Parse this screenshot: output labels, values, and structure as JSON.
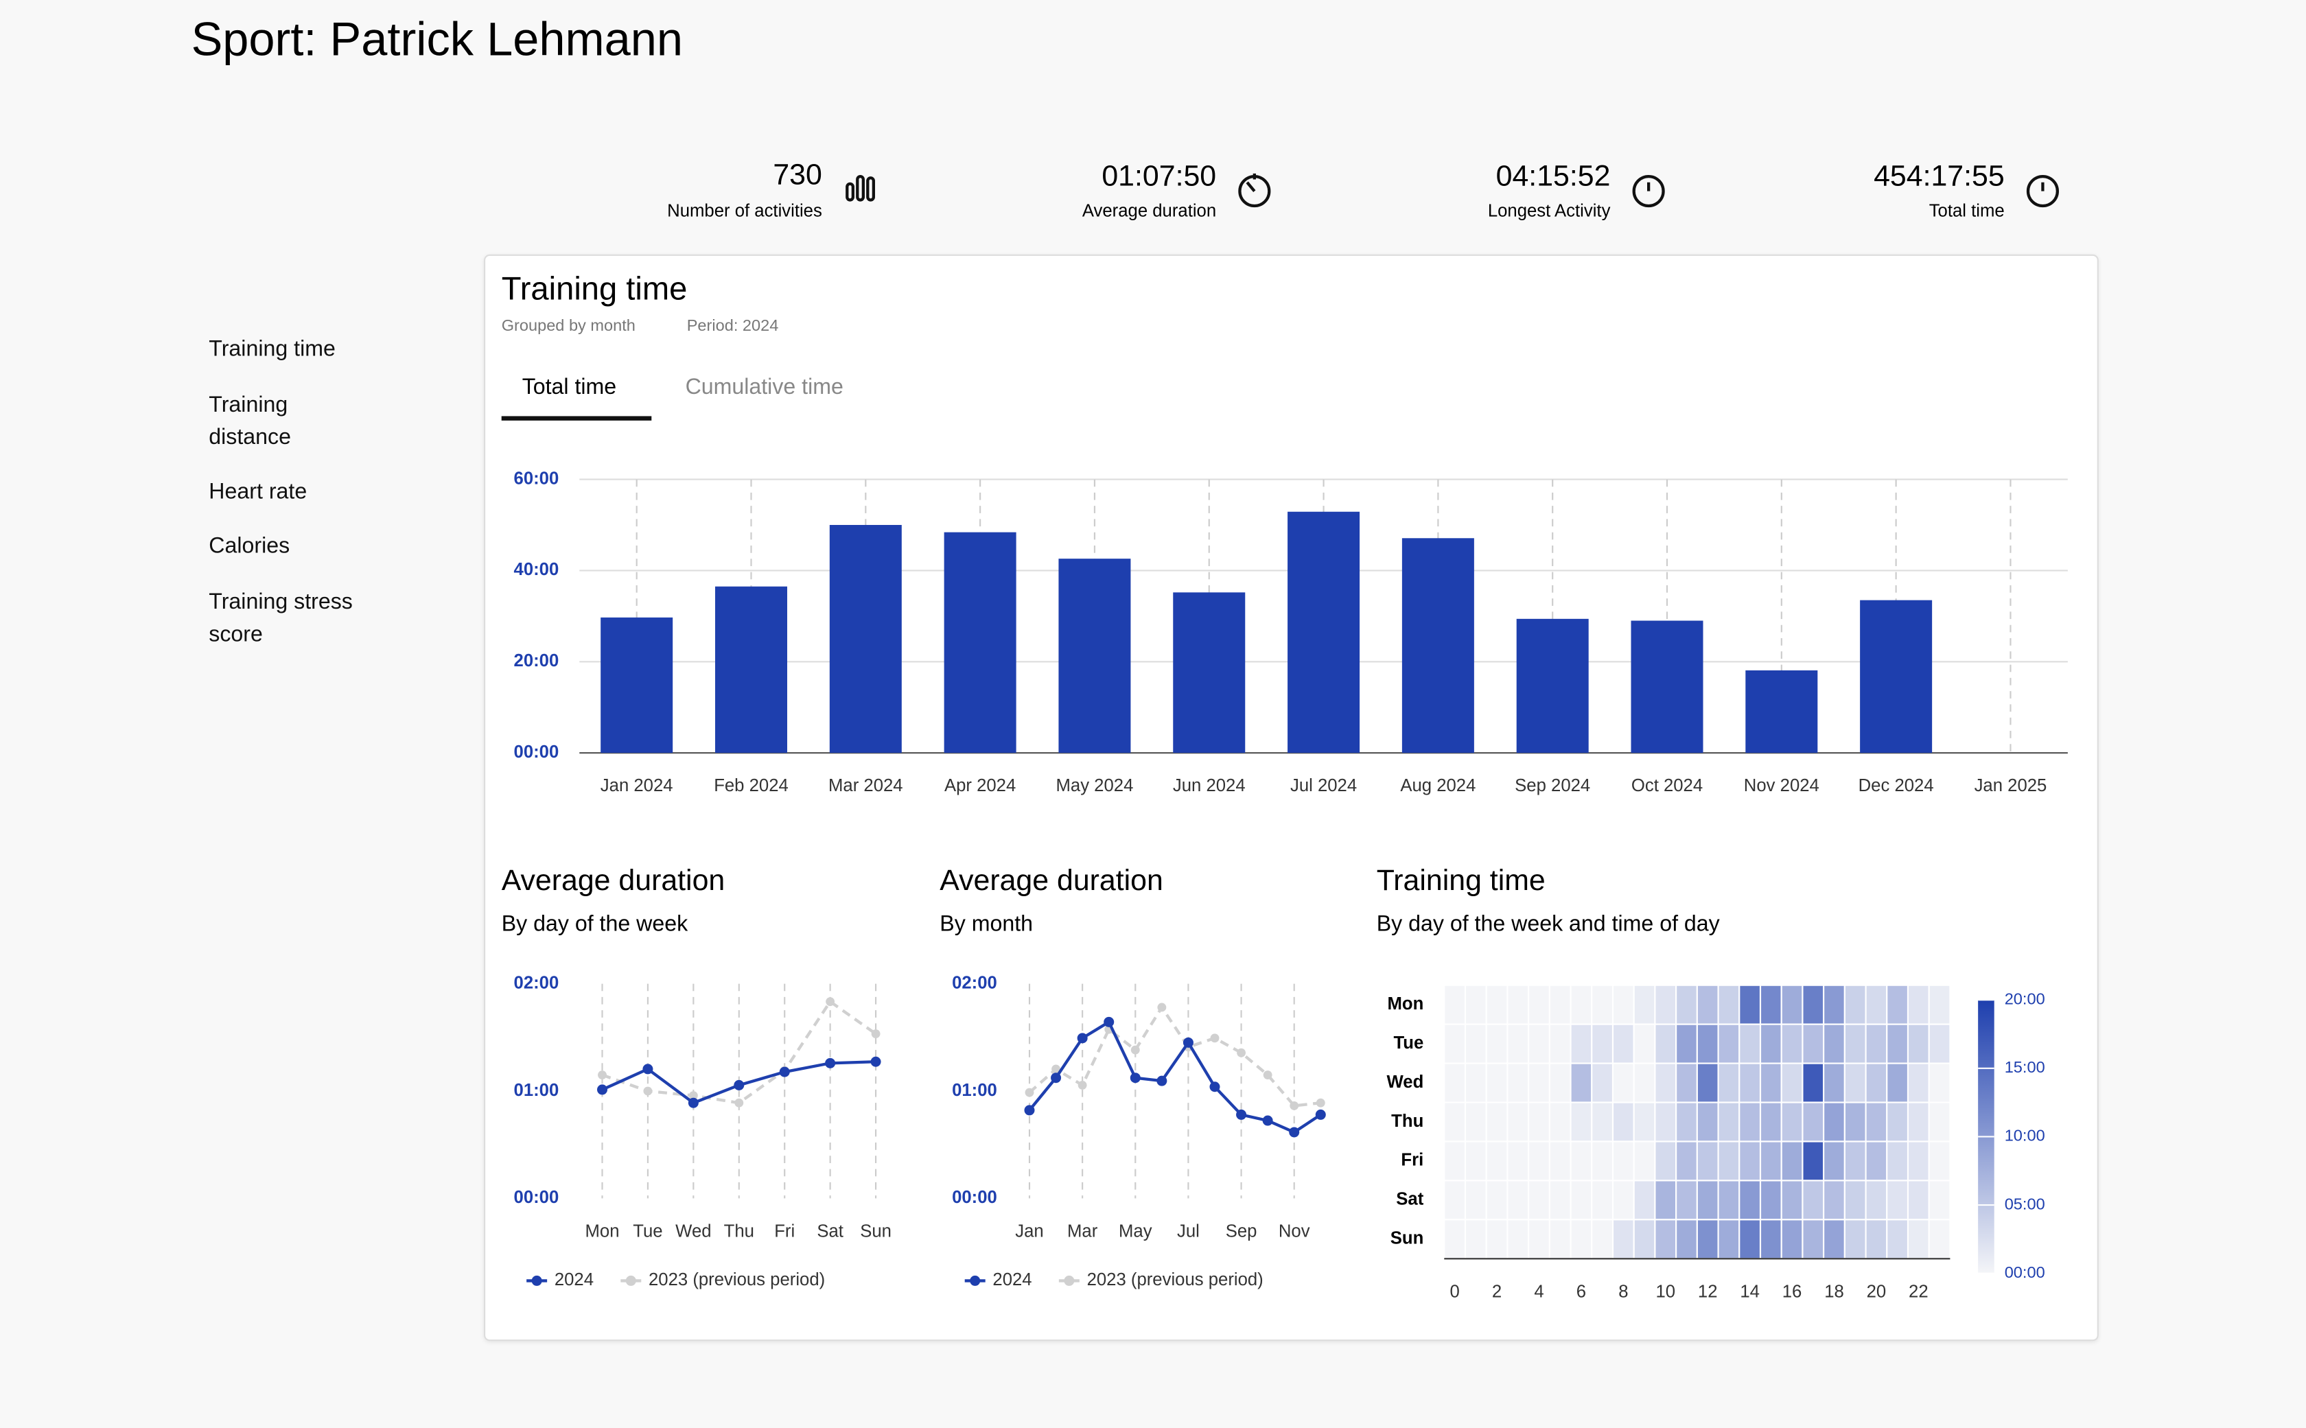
{
  "header": {
    "title": "Sport: Patrick Lehmann"
  },
  "stats": [
    {
      "value": "730",
      "label": "Number of activities"
    },
    {
      "value": "01:07:50",
      "label": "Average duration"
    },
    {
      "value": "04:15:52",
      "label": "Longest Activity"
    },
    {
      "value": "454:17:55",
      "label": "Total time"
    }
  ],
  "nav": [
    "Training time",
    "Training distance",
    "Heart rate",
    "Calories",
    "Training stress score"
  ],
  "panel": {
    "title": "Training time",
    "grouping": "Grouped by month",
    "period": "Period: 2024",
    "tabs": [
      "Total time",
      "Cumulative time"
    ]
  },
  "chart_data": [
    {
      "type": "bar",
      "categories": [
        "Jan 2024",
        "Feb 2024",
        "Mar 2024",
        "Apr 2024",
        "May 2024",
        "Jun 2024",
        "Jul 2024",
        "Aug 2024",
        "Sep 2024",
        "Oct 2024",
        "Nov 2024",
        "Dec 2024",
        "Jan 2025"
      ],
      "values": [
        29.7,
        36.5,
        50,
        48.4,
        42.6,
        35.2,
        52.9,
        47.1,
        29.4,
        29,
        18.1,
        33.5,
        null
      ],
      "color": "#1e3fae",
      "ylim": [
        0,
        60
      ],
      "yticks": [
        {
          "value": 0,
          "label": "00:00"
        },
        {
          "value": 20,
          "label": "20:00"
        },
        {
          "value": 40,
          "label": "40:00"
        },
        {
          "value": 60,
          "label": "60:00"
        }
      ],
      "grid": true
    },
    {
      "type": "line",
      "title": "Average duration",
      "subtitle": "By day of the week",
      "categories": [
        "Mon",
        "Tue",
        "Wed",
        "Thu",
        "Fri",
        "Sat",
        "Sun"
      ],
      "series": [
        {
          "name": "2024",
          "color": "#1e3fae",
          "values": [
            60.8,
            72.3,
            53.4,
            63.3,
            70.7,
            75.6,
            76.4
          ]
        },
        {
          "name": "2023 (previous period)",
          "color": "#d0d0d0",
          "dashed": true,
          "values": [
            69,
            60,
            57.5,
            53.4,
            71.5,
            110,
            92
          ]
        }
      ],
      "ylim": [
        0,
        120
      ],
      "yticks": [
        {
          "value": 0,
          "label": "00:00"
        },
        {
          "value": 60,
          "label": "01:00"
        },
        {
          "value": 120,
          "label": "02:00"
        }
      ]
    },
    {
      "type": "line",
      "title": "Average duration",
      "subtitle": "By month",
      "categories": [
        "Jan",
        null,
        "Mar",
        null,
        "May",
        null,
        "Jul",
        null,
        "Sep",
        null,
        "Nov",
        null
      ],
      "series": [
        {
          "name": "2024",
          "color": "#1e3fae",
          "values": [
            49.3,
            67.4,
            89.6,
            98.6,
            67.4,
            65.7,
            87.1,
            62.4,
            46.8,
            43.5,
            37,
            46.8
          ]
        },
        {
          "name": "2023 (previous period)",
          "color": "#d0d0d0",
          "dashed": true,
          "values": [
            59.2,
            72.3,
            63.3,
            94.5,
            83,
            106.8,
            84.6,
            89.6,
            81.4,
            69,
            51.8,
            53.4
          ]
        }
      ],
      "ylim": [
        0,
        120
      ],
      "yticks": [
        {
          "value": 0,
          "label": "00:00"
        },
        {
          "value": 60,
          "label": "01:00"
        },
        {
          "value": 120,
          "label": "02:00"
        }
      ]
    },
    {
      "type": "heatmap",
      "title": "Training time",
      "subtitle": "By day of the week and time of day",
      "rows": [
        "Mon",
        "Tue",
        "Wed",
        "Thu",
        "Fri",
        "Sat",
        "Sun"
      ],
      "x": [
        0,
        1,
        2,
        3,
        4,
        5,
        6,
        7,
        8,
        9,
        10,
        11,
        12,
        13,
        14,
        15,
        16,
        17,
        18,
        19,
        20,
        21,
        22,
        23
      ],
      "xticks": [
        0,
        2,
        4,
        6,
        8,
        10,
        12,
        14,
        16,
        18,
        20,
        22
      ],
      "values": [
        [
          0,
          0,
          0,
          0,
          0,
          0,
          0,
          0,
          0,
          1,
          2,
          4,
          6,
          4,
          14,
          12,
          8,
          13,
          10,
          4,
          3,
          6,
          2,
          1
        ],
        [
          0,
          0,
          0,
          0,
          0,
          0,
          2,
          2,
          2,
          0,
          3,
          9,
          10,
          6,
          4,
          8,
          5,
          6,
          8,
          4,
          5,
          7,
          4,
          2
        ],
        [
          0,
          0,
          0,
          0,
          0,
          0,
          6,
          2,
          0,
          0,
          2,
          6,
          13,
          4,
          5,
          7,
          3,
          17,
          8,
          3,
          5,
          8,
          2,
          0
        ],
        [
          0,
          0,
          0,
          0,
          0,
          0,
          1,
          1,
          2,
          1,
          2,
          5,
          7,
          4,
          6,
          7,
          5,
          6,
          9,
          7,
          6,
          4,
          2,
          0
        ],
        [
          0,
          0,
          0,
          0,
          0,
          0,
          0,
          0,
          0,
          0,
          3,
          6,
          5,
          4,
          6,
          7,
          8,
          17,
          8,
          5,
          6,
          3,
          2,
          0
        ],
        [
          0,
          0,
          0,
          0,
          0,
          0,
          0,
          0,
          0,
          2,
          7,
          6,
          8,
          7,
          10,
          9,
          7,
          5,
          6,
          4,
          3,
          2,
          2,
          0
        ],
        [
          0,
          0,
          0,
          0,
          0,
          0,
          0,
          0,
          2,
          3,
          6,
          8,
          11,
          8,
          13,
          11,
          9,
          7,
          9,
          4,
          4,
          3,
          1,
          0
        ]
      ],
      "color_range": [
        "#f4f5f8",
        "#1e3fae"
      ],
      "zlim": [
        0,
        20
      ],
      "zticks": [
        {
          "value": 0,
          "label": "00:00"
        },
        {
          "value": 5,
          "label": "05:00"
        },
        {
          "value": 10,
          "label": "10:00"
        },
        {
          "value": 15,
          "label": "15:00"
        },
        {
          "value": 20,
          "label": "20:00"
        }
      ]
    }
  ]
}
